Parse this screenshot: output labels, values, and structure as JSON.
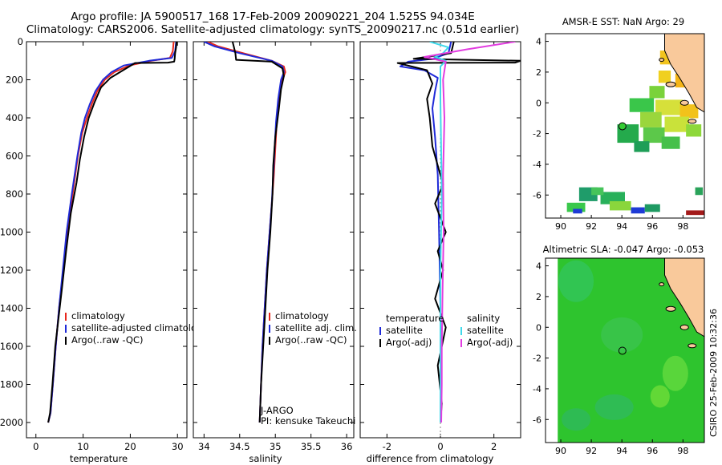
{
  "title": {
    "line1": "Argo profile: JA 5900517_168 17-Feb-2009 20090221_204 1.525S 94.034E",
    "line2": "Climatology: CARS2006. Satellite-adjusted climatology: synTS_20090217.nc (0.51d earlier)"
  },
  "colors": {
    "climatology": "#e8271c",
    "satellite": "#1f2ad8",
    "argo": "#000000",
    "satellite_salinity": "#3fd9ea",
    "argo_adj_salinity": "#e23de0",
    "land": "#f9c99b",
    "sla_base": "#2ec42e"
  },
  "chart_data": [
    {
      "type": "line",
      "id": "temperature",
      "xlabel": "temperature",
      "ylabel": "",
      "xlim": [
        -2,
        32
      ],
      "ylim": [
        0,
        2080
      ],
      "y_inverted": true,
      "xticks": [
        "0",
        "10",
        "20",
        "30"
      ],
      "yticks": [
        "0",
        "200",
        "400",
        "600",
        "800",
        "1000",
        "1200",
        "1400",
        "1600",
        "1800",
        "2000"
      ],
      "legend": [
        "climatology",
        "satellite-adjusted climatology",
        "Argo(..raw -QC)"
      ],
      "series": [
        {
          "name": "climatology",
          "x": [
            29.2,
            29.0,
            28.4,
            24.5,
            19.8,
            16.6,
            14.6,
            13.0,
            11.8,
            10.8,
            9.8,
            8.9,
            7.8,
            6.6,
            5.8,
            4.9,
            4.2,
            3.6,
            3.1,
            2.6
          ],
          "y": [
            0,
            50,
            85,
            100,
            125,
            160,
            200,
            260,
            330,
            400,
            480,
            600,
            800,
            1000,
            1200,
            1400,
            1600,
            1800,
            1950,
            2000
          ]
        },
        {
          "name": "satellite-adjusted climatology",
          "x": [
            29.7,
            29.5,
            28.8,
            24.0,
            18.6,
            16.0,
            14.2,
            12.6,
            11.4,
            10.4,
            9.6,
            8.8,
            7.6,
            6.5,
            5.7,
            4.9,
            4.2,
            3.6,
            3.1,
            2.6
          ],
          "y": [
            0,
            50,
            85,
            100,
            125,
            160,
            200,
            260,
            330,
            400,
            480,
            600,
            800,
            1000,
            1200,
            1400,
            1600,
            1800,
            1950,
            2000
          ]
        },
        {
          "name": "Argo(..raw -QC)",
          "x": [
            29.8,
            29.7,
            29.5,
            29.4,
            29.3,
            28.0,
            21.0,
            15.8,
            13.8,
            12.4,
            11.2,
            10.2,
            9.3,
            8.6,
            7.4,
            6.4,
            5.5,
            4.8,
            4.1,
            3.5,
            3.0,
            2.6
          ],
          "y": [
            0,
            30,
            60,
            90,
            105,
            110,
            112,
            190,
            240,
            320,
            400,
            500,
            620,
            740,
            900,
            1100,
            1300,
            1450,
            1600,
            1800,
            1950,
            2000
          ]
        }
      ]
    },
    {
      "type": "line",
      "id": "salinity",
      "xlabel": "salinity",
      "ylabel": "",
      "xlim": [
        33.85,
        36.1
      ],
      "ylim": [
        0,
        2080
      ],
      "y_inverted": true,
      "xticks": [
        "34",
        "34.5",
        "35",
        "35.5",
        "36"
      ],
      "legend": [
        "climatology",
        "satellite adj. clim.",
        "Argo(..raw -QC)"
      ],
      "annotation": [
        "J-ARGO",
        "PI: kensuke Takeuchi"
      ],
      "series": [
        {
          "name": "climatology",
          "x": [
            34.05,
            34.2,
            34.55,
            34.95,
            35.12,
            35.14,
            35.1,
            35.05,
            35.02,
            35.0,
            34.98,
            34.95,
            34.92,
            34.88,
            34.85,
            34.82,
            34.8,
            34.78
          ],
          "y": [
            0,
            25,
            60,
            100,
            130,
            160,
            200,
            300,
            420,
            560,
            700,
            850,
            1000,
            1200,
            1400,
            1600,
            1800,
            2000
          ]
        },
        {
          "name": "satellite adj. clim.",
          "x": [
            34.0,
            34.15,
            34.5,
            34.95,
            35.1,
            35.12,
            35.08,
            35.04,
            35.01,
            34.99,
            34.97,
            34.95,
            34.92,
            34.88,
            34.85,
            34.82,
            34.8,
            34.78
          ],
          "y": [
            0,
            25,
            60,
            100,
            130,
            160,
            200,
            300,
            420,
            560,
            700,
            850,
            1000,
            1200,
            1400,
            1600,
            1800,
            2000
          ]
        },
        {
          "name": "Argo(..raw -QC)",
          "x": [
            34.4,
            34.42,
            34.44,
            34.45,
            34.95,
            35.1,
            35.12,
            35.08,
            35.05,
            35.0,
            34.97,
            34.96,
            34.93,
            34.89,
            34.86,
            34.83,
            34.8,
            34.78
          ],
          "y": [
            0,
            30,
            60,
            95,
            105,
            140,
            180,
            250,
            350,
            500,
            650,
            800,
            1000,
            1200,
            1400,
            1600,
            1800,
            2000
          ]
        }
      ]
    },
    {
      "type": "line",
      "id": "difference",
      "xlabel": "difference from climatology",
      "ylabel": "",
      "xlim": [
        -3.0,
        3.0
      ],
      "ylim": [
        0,
        2080
      ],
      "y_inverted": true,
      "xticks": [
        "-2",
        "0",
        "2"
      ],
      "legend_left_title": "temperature",
      "legend_right_title": "salinity",
      "legend": [
        "satellite",
        "Argo(-adj)",
        "satellite",
        "Argo(-adj)"
      ],
      "series": [
        {
          "name": "temperature satellite",
          "x": [
            0.4,
            0.3,
            -0.3,
            -1.2,
            -1.5,
            -0.6,
            -0.1,
            -0.2,
            -0.3,
            -0.2,
            -0.1,
            -0.05,
            0.0,
            0.0,
            0.0
          ],
          "y": [
            0,
            60,
            90,
            105,
            130,
            150,
            190,
            260,
            350,
            500,
            700,
            1000,
            1400,
            1800,
            2000
          ]
        },
        {
          "name": "temperature Argo(-adj)",
          "x": [
            0.5,
            0.4,
            -1.0,
            3.0,
            2.8,
            -1.6,
            -0.5,
            -0.3,
            -0.5,
            -0.4,
            -0.3,
            0.1,
            -0.2,
            0.2,
            -0.1,
            0.1,
            -0.2,
            0.2,
            -0.1,
            0.05,
            0.0
          ],
          "y": [
            0,
            60,
            90,
            100,
            110,
            112,
            150,
            220,
            300,
            400,
            550,
            750,
            850,
            1000,
            1100,
            1200,
            1350,
            1500,
            1700,
            1900,
            2000
          ]
        },
        {
          "name": "salinity satellite",
          "x": [
            -0.4,
            0.3,
            0.1,
            -0.2,
            0.2,
            0.0,
            0.0,
            0.05,
            0.0,
            0.0,
            0.0
          ],
          "y": [
            0,
            30,
            60,
            80,
            100,
            130,
            300,
            800,
            1200,
            1700,
            2000
          ]
        },
        {
          "name": "salinity Argo(-adj)",
          "x": [
            2.8,
            1.0,
            -0.6,
            0.2,
            0.1,
            0.15,
            0.1,
            0.12,
            0.08,
            0.05,
            0.05,
            0.03
          ],
          "y": [
            0,
            40,
            80,
            105,
            200,
            400,
            700,
            1000,
            1300,
            1600,
            1800,
            2000
          ]
        }
      ]
    },
    {
      "type": "heatmap",
      "id": "sst-map",
      "title": "AMSR-E SST: NaN Argo: 29",
      "xlim": [
        89,
        99.4
      ],
      "ylim": [
        -7.5,
        4.5
      ],
      "xticks": [
        "90",
        "92",
        "94",
        "96",
        "98"
      ],
      "yticks": [
        "4",
        "2",
        "0",
        "-2",
        "-4",
        "-6"
      ],
      "argo_position": {
        "lon": 94.034,
        "lat": -1.525
      }
    },
    {
      "type": "heatmap",
      "id": "sla-map",
      "title": "Altimetric SLA: -0.047 Argo: -0.053",
      "xlim": [
        89,
        99.4
      ],
      "ylim": [
        -7.5,
        4.5
      ],
      "xticks": [
        "90",
        "92",
        "94",
        "96",
        "98"
      ],
      "yticks": [
        "4",
        "2",
        "0",
        "-2",
        "-4",
        "-6"
      ],
      "argo_position": {
        "lon": 94.034,
        "lat": -1.525
      }
    }
  ],
  "footer": {
    "stamp": "CSIRO 25-Feb-2009 10:32:36"
  }
}
